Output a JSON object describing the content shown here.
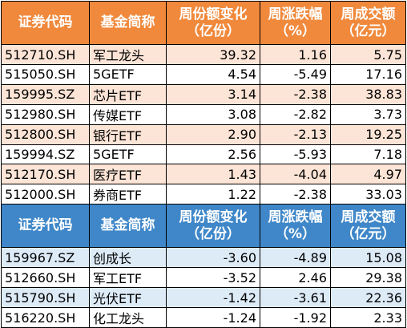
{
  "headers": {
    "code": "证券代码",
    "name": "基金简称",
    "share_change_line1": "周份额变化",
    "share_change_line2": "（亿份）",
    "pct_change_line1": "周涨跌幅",
    "pct_change_line2": "（%）",
    "turnover_line1": "周成交额",
    "turnover_line2": "（亿元）"
  },
  "inflow_rows": [
    {
      "code": "512710.SH",
      "name": "军工龙头",
      "share_change": "39.32",
      "pct_change": "1.16",
      "turnover": "5.75"
    },
    {
      "code": "515050.SH",
      "name": "5GETF",
      "share_change": "4.54",
      "pct_change": "-5.49",
      "turnover": "17.16"
    },
    {
      "code": "159995.SZ",
      "name": "芯片ETF",
      "share_change": "3.14",
      "pct_change": "-2.38",
      "turnover": "38.83"
    },
    {
      "code": "512980.SH",
      "name": "传媒ETF",
      "share_change": "3.08",
      "pct_change": "-2.82",
      "turnover": "3.73"
    },
    {
      "code": "512800.SH",
      "name": "银行ETF",
      "share_change": "2.90",
      "pct_change": "-2.13",
      "turnover": "19.25"
    },
    {
      "code": "159994.SZ",
      "name": "5GETF",
      "share_change": "2.56",
      "pct_change": "-5.93",
      "turnover": "7.18"
    },
    {
      "code": "512170.SH",
      "name": "医疗ETF",
      "share_change": "1.43",
      "pct_change": "-4.04",
      "turnover": "4.97"
    },
    {
      "code": "512000.SH",
      "name": "券商ETF",
      "share_change": "1.22",
      "pct_change": "-2.38",
      "turnover": "33.03"
    }
  ],
  "outflow_rows": [
    {
      "code": "159967.SZ",
      "name": "创成长",
      "share_change": "-3.60",
      "pct_change": "-4.89",
      "turnover": "15.08"
    },
    {
      "code": "512660.SH",
      "name": "军工ETF",
      "share_change": "-3.52",
      "pct_change": "2.46",
      "turnover": "29.38"
    },
    {
      "code": "515790.SH",
      "name": "光伏ETF",
      "share_change": "-1.42",
      "pct_change": "-3.61",
      "turnover": "22.36"
    },
    {
      "code": "516220.SH",
      "name": "化工龙头",
      "share_change": "-1.24",
      "pct_change": "-1.92",
      "turnover": "2.33"
    }
  ],
  "colors": {
    "inflow_header": "#f0893c",
    "inflow_alt_row": "#fce4d6",
    "outflow_header": "#3f87c8",
    "outflow_alt_row": "#ddebf7"
  }
}
